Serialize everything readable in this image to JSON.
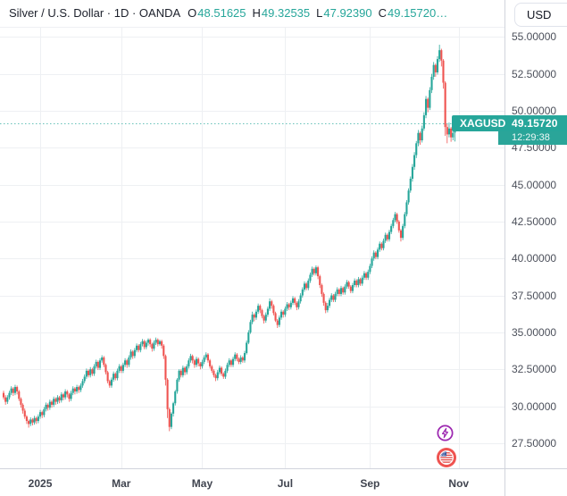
{
  "header": {
    "symbol_title": "Silver / U.S. Dollar · 1D · OANDA",
    "ohlc": [
      {
        "label": "O",
        "value": "48.51625"
      },
      {
        "label": "H",
        "value": "49.32535"
      },
      {
        "label": "L",
        "value": "47.92390"
      },
      {
        "label": "C",
        "value": "49.15720…"
      }
    ],
    "currency_button": "USD"
  },
  "price_scale": {
    "labels": [
      "55.00000",
      "52.50000",
      "50.00000",
      "47.50000",
      "45.00000",
      "42.50000",
      "40.00000",
      "37.50000",
      "35.00000",
      "32.50000",
      "30.00000",
      "27.50000"
    ],
    "values": [
      55,
      52.5,
      50,
      47.5,
      45,
      42.5,
      40,
      37.5,
      35,
      32.5,
      30,
      27.5
    ]
  },
  "time_scale": {
    "labels": [
      {
        "text": "2025",
        "index": 19
      },
      {
        "text": "Mar",
        "index": 61
      },
      {
        "text": "May",
        "index": 103
      },
      {
        "text": "Jul",
        "index": 146
      },
      {
        "text": "Sep",
        "index": 190
      },
      {
        "text": "Nov",
        "index": 236
      }
    ]
  },
  "price_label": {
    "symbol": "XAGUSD",
    "price": "49.15720",
    "countdown": "12:29:38",
    "value": 49.1572
  },
  "events": [
    {
      "name": "lightning-event-icon",
      "color": "#9c27b0"
    },
    {
      "name": "us-flag-event-icon",
      "color": "#ef5350"
    }
  ],
  "colors": {
    "up": "#26a69a",
    "down": "#ef5350",
    "badge": "#26a69a",
    "grid": "#eef0f3",
    "axis_line": "#d1d4dc",
    "current_price_line": "rgba(38,166,154,0.7)"
  },
  "chart_data": {
    "type": "candlestick",
    "symbol": "XAGUSD",
    "title": "Silver / U.S. Dollar",
    "timeframe": "1D",
    "exchange": "OANDA",
    "y_min": 27.5,
    "y_max": 55,
    "y_step": 2.5,
    "x_range": "Dec 2024 - Nov 2025",
    "current_price": 49.1572,
    "last_ohlc": {
      "open": 48.51625,
      "high": 49.32535,
      "low": 47.9239,
      "close": 49.1572
    },
    "candles": [
      [
        30.9,
        31.05,
        30.45,
        30.6
      ],
      [
        30.6,
        30.75,
        30.1,
        30.3
      ],
      [
        30.3,
        30.75,
        30.15,
        30.6
      ],
      [
        30.6,
        31.05,
        30.45,
        30.9
      ],
      [
        30.9,
        31.35,
        30.75,
        31.2
      ],
      [
        31.2,
        31.3,
        30.7,
        30.9
      ],
      [
        30.9,
        31.45,
        30.75,
        31.3
      ],
      [
        31.3,
        31.4,
        30.8,
        31.0
      ],
      [
        31.0,
        31.1,
        30.35,
        30.5
      ],
      [
        30.5,
        30.6,
        29.9,
        30.1
      ],
      [
        30.1,
        30.2,
        29.5,
        29.7
      ],
      [
        29.7,
        29.85,
        29.15,
        29.3
      ],
      [
        29.3,
        29.4,
        28.8,
        29.0
      ],
      [
        29.0,
        29.1,
        28.55,
        28.8
      ],
      [
        28.8,
        29.25,
        28.65,
        29.1
      ],
      [
        29.1,
        29.2,
        28.7,
        28.9
      ],
      [
        28.9,
        29.35,
        28.75,
        29.2
      ],
      [
        29.2,
        29.3,
        28.8,
        29.0
      ],
      [
        29.0,
        29.45,
        28.85,
        29.3
      ],
      [
        29.3,
        29.75,
        29.15,
        29.6
      ],
      [
        29.6,
        29.7,
        29.2,
        29.4
      ],
      [
        29.4,
        29.95,
        29.25,
        29.8
      ],
      [
        29.8,
        30.25,
        29.65,
        30.1
      ],
      [
        30.1,
        30.2,
        29.7,
        29.9
      ],
      [
        29.9,
        30.45,
        29.75,
        30.3
      ],
      [
        30.3,
        30.4,
        29.9,
        30.1
      ],
      [
        30.1,
        30.65,
        29.95,
        30.5
      ],
      [
        30.5,
        30.6,
        30.1,
        30.3
      ],
      [
        30.3,
        30.75,
        30.15,
        30.6
      ],
      [
        30.6,
        30.7,
        30.2,
        30.4
      ],
      [
        30.4,
        30.95,
        30.25,
        30.8
      ],
      [
        30.8,
        30.9,
        30.4,
        30.6
      ],
      [
        30.6,
        31.15,
        30.45,
        31.0
      ],
      [
        31.0,
        31.1,
        30.6,
        30.8
      ],
      [
        30.8,
        30.9,
        30.3,
        30.5
      ],
      [
        30.5,
        31.05,
        30.35,
        30.9
      ],
      [
        30.9,
        31.35,
        30.75,
        31.2
      ],
      [
        31.2,
        31.3,
        30.8,
        31.0
      ],
      [
        31.0,
        31.45,
        30.85,
        31.3
      ],
      [
        31.3,
        31.4,
        30.9,
        31.1
      ],
      [
        31.1,
        31.55,
        30.95,
        31.4
      ],
      [
        31.4,
        31.85,
        31.25,
        31.7
      ],
      [
        31.7,
        32.15,
        31.55,
        32.0
      ],
      [
        32.0,
        32.55,
        31.85,
        32.4
      ],
      [
        32.4,
        32.5,
        31.95,
        32.1
      ],
      [
        32.1,
        32.65,
        31.95,
        32.5
      ],
      [
        32.5,
        32.6,
        32.05,
        32.2
      ],
      [
        32.2,
        32.85,
        32.05,
        32.7
      ],
      [
        32.7,
        33.15,
        32.55,
        33.0
      ],
      [
        33.0,
        33.1,
        32.45,
        32.6
      ],
      [
        32.6,
        33.25,
        32.45,
        33.1
      ],
      [
        33.1,
        33.45,
        32.95,
        33.3
      ],
      [
        33.3,
        33.4,
        32.65,
        32.8
      ],
      [
        32.8,
        32.9,
        32.15,
        32.3
      ],
      [
        32.3,
        32.4,
        31.55,
        31.7
      ],
      [
        31.7,
        31.8,
        31.25,
        31.4
      ],
      [
        31.4,
        31.95,
        31.25,
        31.8
      ],
      [
        31.8,
        32.35,
        31.65,
        32.2
      ],
      [
        32.2,
        32.3,
        31.75,
        31.9
      ],
      [
        31.9,
        32.55,
        31.75,
        32.4
      ],
      [
        32.4,
        32.85,
        32.25,
        32.7
      ],
      [
        32.7,
        32.8,
        32.25,
        32.4
      ],
      [
        32.4,
        32.95,
        32.25,
        32.8
      ],
      [
        32.8,
        33.25,
        32.65,
        33.1
      ],
      [
        33.1,
        33.2,
        32.6,
        32.8
      ],
      [
        32.8,
        33.45,
        32.65,
        33.3
      ],
      [
        33.3,
        33.85,
        33.15,
        33.7
      ],
      [
        33.7,
        33.8,
        33.2,
        33.4
      ],
      [
        33.4,
        33.95,
        33.25,
        33.8
      ],
      [
        33.8,
        34.25,
        33.65,
        34.1
      ],
      [
        34.1,
        34.2,
        33.65,
        33.8
      ],
      [
        33.8,
        34.35,
        33.65,
        34.2
      ],
      [
        34.2,
        34.55,
        34.05,
        34.4
      ],
      [
        34.4,
        34.5,
        33.85,
        34.0
      ],
      [
        34.0,
        34.45,
        33.85,
        34.3
      ],
      [
        34.3,
        34.6,
        34.1,
        34.5
      ],
      [
        34.5,
        34.6,
        34.0,
        34.2
      ],
      [
        34.2,
        34.3,
        33.7,
        33.9
      ],
      [
        33.9,
        34.45,
        33.75,
        34.3
      ],
      [
        34.3,
        34.65,
        34.15,
        34.5
      ],
      [
        34.5,
        34.6,
        34.05,
        34.2
      ],
      [
        34.2,
        34.5,
        34.1,
        34.4
      ],
      [
        34.4,
        34.5,
        33.9,
        34.1
      ],
      [
        34.1,
        34.2,
        33.2,
        33.4
      ],
      [
        33.4,
        33.5,
        31.4,
        31.8
      ],
      [
        31.8,
        31.9,
        29.2,
        29.8
      ],
      [
        29.8,
        29.9,
        28.31,
        28.6
      ],
      [
        28.6,
        29.6,
        28.45,
        29.5
      ],
      [
        29.5,
        30.3,
        29.3,
        30.2
      ],
      [
        30.2,
        31.1,
        30.05,
        31.0
      ],
      [
        31.0,
        31.9,
        30.85,
        31.8
      ],
      [
        31.8,
        32.5,
        31.65,
        32.4
      ],
      [
        32.4,
        32.5,
        31.95,
        32.1
      ],
      [
        32.1,
        32.75,
        31.95,
        32.6
      ],
      [
        32.6,
        32.7,
        32.1,
        32.3
      ],
      [
        32.3,
        32.85,
        32.15,
        32.7
      ],
      [
        32.7,
        33.25,
        32.55,
        33.1
      ],
      [
        33.1,
        33.55,
        32.95,
        33.4
      ],
      [
        33.4,
        33.5,
        32.9,
        33.1
      ],
      [
        33.1,
        33.2,
        32.6,
        32.8
      ],
      [
        32.8,
        33.35,
        32.65,
        33.2
      ],
      [
        33.2,
        33.3,
        32.7,
        32.9
      ],
      [
        32.9,
        33.0,
        32.5,
        32.7
      ],
      [
        32.7,
        33.15,
        32.55,
        33.0
      ],
      [
        33.0,
        33.45,
        32.85,
        33.3
      ],
      [
        33.3,
        33.65,
        33.15,
        33.5
      ],
      [
        33.5,
        33.6,
        32.95,
        33.1
      ],
      [
        33.1,
        33.2,
        32.55,
        32.7
      ],
      [
        32.7,
        32.8,
        32.25,
        32.4
      ],
      [
        32.4,
        32.5,
        31.95,
        32.1
      ],
      [
        32.1,
        32.2,
        31.7,
        31.9
      ],
      [
        31.9,
        32.45,
        31.75,
        32.3
      ],
      [
        32.3,
        32.75,
        32.15,
        32.6
      ],
      [
        32.6,
        32.7,
        32.05,
        32.2
      ],
      [
        32.2,
        32.3,
        31.85,
        32.0
      ],
      [
        32.0,
        32.55,
        31.85,
        32.4
      ],
      [
        32.4,
        32.95,
        32.25,
        32.8
      ],
      [
        32.8,
        33.25,
        32.65,
        33.1
      ],
      [
        33.1,
        33.2,
        32.65,
        32.8
      ],
      [
        32.8,
        33.35,
        32.65,
        33.2
      ],
      [
        33.2,
        33.65,
        33.05,
        33.5
      ],
      [
        33.5,
        33.6,
        33.05,
        33.2
      ],
      [
        33.2,
        33.3,
        32.85,
        33.0
      ],
      [
        33.0,
        33.45,
        32.85,
        33.3
      ],
      [
        33.3,
        33.4,
        32.95,
        33.1
      ],
      [
        33.1,
        33.75,
        32.95,
        33.6
      ],
      [
        33.6,
        34.45,
        33.5,
        34.3
      ],
      [
        34.3,
        35.15,
        34.2,
        35.0
      ],
      [
        35.0,
        35.85,
        34.9,
        35.7
      ],
      [
        35.7,
        36.4,
        35.55,
        36.2
      ],
      [
        36.2,
        36.3,
        35.75,
        36.0
      ],
      [
        36.0,
        36.55,
        35.85,
        36.4
      ],
      [
        36.4,
        36.95,
        36.25,
        36.8
      ],
      [
        36.8,
        36.9,
        36.3,
        36.5
      ],
      [
        36.5,
        36.6,
        35.95,
        36.1
      ],
      [
        36.1,
        36.2,
        35.6,
        35.8
      ],
      [
        35.8,
        36.35,
        35.65,
        36.2
      ],
      [
        36.2,
        36.75,
        36.05,
        36.6
      ],
      [
        36.6,
        37.3,
        36.45,
        37.1
      ],
      [
        37.1,
        37.2,
        36.6,
        36.8
      ],
      [
        36.8,
        36.9,
        36.15,
        36.3
      ],
      [
        36.3,
        36.4,
        35.7,
        35.8
      ],
      [
        35.8,
        35.9,
        35.3,
        35.5
      ],
      [
        35.5,
        36.15,
        35.35,
        36.0
      ],
      [
        36.0,
        36.55,
        35.85,
        36.4
      ],
      [
        36.4,
        36.5,
        36.0,
        36.2
      ],
      [
        36.2,
        36.75,
        36.05,
        36.6
      ],
      [
        36.6,
        37.05,
        36.45,
        36.9
      ],
      [
        36.9,
        37.0,
        36.5,
        36.7
      ],
      [
        36.7,
        37.15,
        36.55,
        37.0
      ],
      [
        37.0,
        37.45,
        36.85,
        37.3
      ],
      [
        37.3,
        37.4,
        36.85,
        37.0
      ],
      [
        37.0,
        37.1,
        36.5,
        36.7
      ],
      [
        36.7,
        37.25,
        36.55,
        37.1
      ],
      [
        37.1,
        37.65,
        36.95,
        37.5
      ],
      [
        37.5,
        38.05,
        37.35,
        37.9
      ],
      [
        37.9,
        38.45,
        37.75,
        38.3
      ],
      [
        38.3,
        38.4,
        37.85,
        38.0
      ],
      [
        38.0,
        38.65,
        37.85,
        38.5
      ],
      [
        38.5,
        39.05,
        38.35,
        38.9
      ],
      [
        38.9,
        39.45,
        38.75,
        39.3
      ],
      [
        39.3,
        39.4,
        38.85,
        39.0
      ],
      [
        39.0,
        39.53,
        38.85,
        39.4
      ],
      [
        39.4,
        39.5,
        38.6,
        38.8
      ],
      [
        38.8,
        38.9,
        38.0,
        38.2
      ],
      [
        38.2,
        38.3,
        37.4,
        37.6
      ],
      [
        37.6,
        37.7,
        36.8,
        37.0
      ],
      [
        37.0,
        37.1,
        36.3,
        36.5
      ],
      [
        36.5,
        37.0,
        36.35,
        36.8
      ],
      [
        36.8,
        37.35,
        36.65,
        37.2
      ],
      [
        37.2,
        37.65,
        37.05,
        37.5
      ],
      [
        37.5,
        37.6,
        37.05,
        37.2
      ],
      [
        37.2,
        37.75,
        37.05,
        37.6
      ],
      [
        37.6,
        38.05,
        37.45,
        37.9
      ],
      [
        37.9,
        38.0,
        37.45,
        37.6
      ],
      [
        37.6,
        38.15,
        37.45,
        38.0
      ],
      [
        38.0,
        38.1,
        37.55,
        37.7
      ],
      [
        37.7,
        38.25,
        37.55,
        38.1
      ],
      [
        38.1,
        38.55,
        37.95,
        38.4
      ],
      [
        38.4,
        38.5,
        37.95,
        38.1
      ],
      [
        38.1,
        38.2,
        37.65,
        37.8
      ],
      [
        37.8,
        38.35,
        37.65,
        38.2
      ],
      [
        38.2,
        38.65,
        38.05,
        38.5
      ],
      [
        38.5,
        38.6,
        38.05,
        38.2
      ],
      [
        38.2,
        38.75,
        38.05,
        38.6
      ],
      [
        38.6,
        38.7,
        38.15,
        38.3
      ],
      [
        38.3,
        38.85,
        38.15,
        38.7
      ],
      [
        38.7,
        39.15,
        38.55,
        39.0
      ],
      [
        39.0,
        39.1,
        38.55,
        38.7
      ],
      [
        38.7,
        39.25,
        38.55,
        39.1
      ],
      [
        39.1,
        39.65,
        38.95,
        39.5
      ],
      [
        39.5,
        40.15,
        39.35,
        40.0
      ],
      [
        40.0,
        40.55,
        39.85,
        40.4
      ],
      [
        40.4,
        40.5,
        39.95,
        40.1
      ],
      [
        40.1,
        40.75,
        39.95,
        40.6
      ],
      [
        40.6,
        41.15,
        40.45,
        41.0
      ],
      [
        41.0,
        41.1,
        40.55,
        40.7
      ],
      [
        40.7,
        41.35,
        40.55,
        41.2
      ],
      [
        41.2,
        41.75,
        41.05,
        41.6
      ],
      [
        41.6,
        41.7,
        41.15,
        41.3
      ],
      [
        41.3,
        41.95,
        41.15,
        41.8
      ],
      [
        41.8,
        42.35,
        41.65,
        42.2
      ],
      [
        42.2,
        42.75,
        42.05,
        42.6
      ],
      [
        42.6,
        43.15,
        42.45,
        43.0
      ],
      [
        43.0,
        43.1,
        42.35,
        42.5
      ],
      [
        42.5,
        42.6,
        41.75,
        41.9
      ],
      [
        41.9,
        42.0,
        41.15,
        41.4
      ],
      [
        41.4,
        42.35,
        41.25,
        42.2
      ],
      [
        42.2,
        43.15,
        42.05,
        43.0
      ],
      [
        43.0,
        43.95,
        42.85,
        43.8
      ],
      [
        43.8,
        44.75,
        43.65,
        44.6
      ],
      [
        44.6,
        45.55,
        44.45,
        45.4
      ],
      [
        45.4,
        46.4,
        45.2,
        46.2
      ],
      [
        46.2,
        47.2,
        46.0,
        47.0
      ],
      [
        47.0,
        47.95,
        46.8,
        47.8
      ],
      [
        47.8,
        48.7,
        47.6,
        48.5
      ],
      [
        48.5,
        48.6,
        47.7,
        48.0
      ],
      [
        48.0,
        49.0,
        47.85,
        48.8
      ],
      [
        48.8,
        49.9,
        48.65,
        49.7
      ],
      [
        49.7,
        51.0,
        49.5,
        50.8
      ],
      [
        50.8,
        50.9,
        49.9,
        50.2
      ],
      [
        50.2,
        51.6,
        50.05,
        51.4
      ],
      [
        51.4,
        52.5,
        51.2,
        52.3
      ],
      [
        52.3,
        53.3,
        52.1,
        53.1
      ],
      [
        53.1,
        53.2,
        52.3,
        52.6
      ],
      [
        52.6,
        53.7,
        52.45,
        53.5
      ],
      [
        53.5,
        54.47,
        53.3,
        54.1
      ],
      [
        54.1,
        54.2,
        53.0,
        53.4
      ],
      [
        53.4,
        53.5,
        51.5,
        51.9
      ],
      [
        51.9,
        52.0,
        48.3,
        48.9
      ],
      [
        48.9,
        49.1,
        47.8,
        48.4
      ],
      [
        48.4,
        49.2,
        48.2,
        48.8
      ],
      [
        48.8,
        48.9,
        47.9,
        48.2
      ],
      [
        48.2,
        48.8,
        48.0,
        48.5
      ],
      [
        48.52,
        49.33,
        47.92,
        49.16
      ]
    ]
  }
}
